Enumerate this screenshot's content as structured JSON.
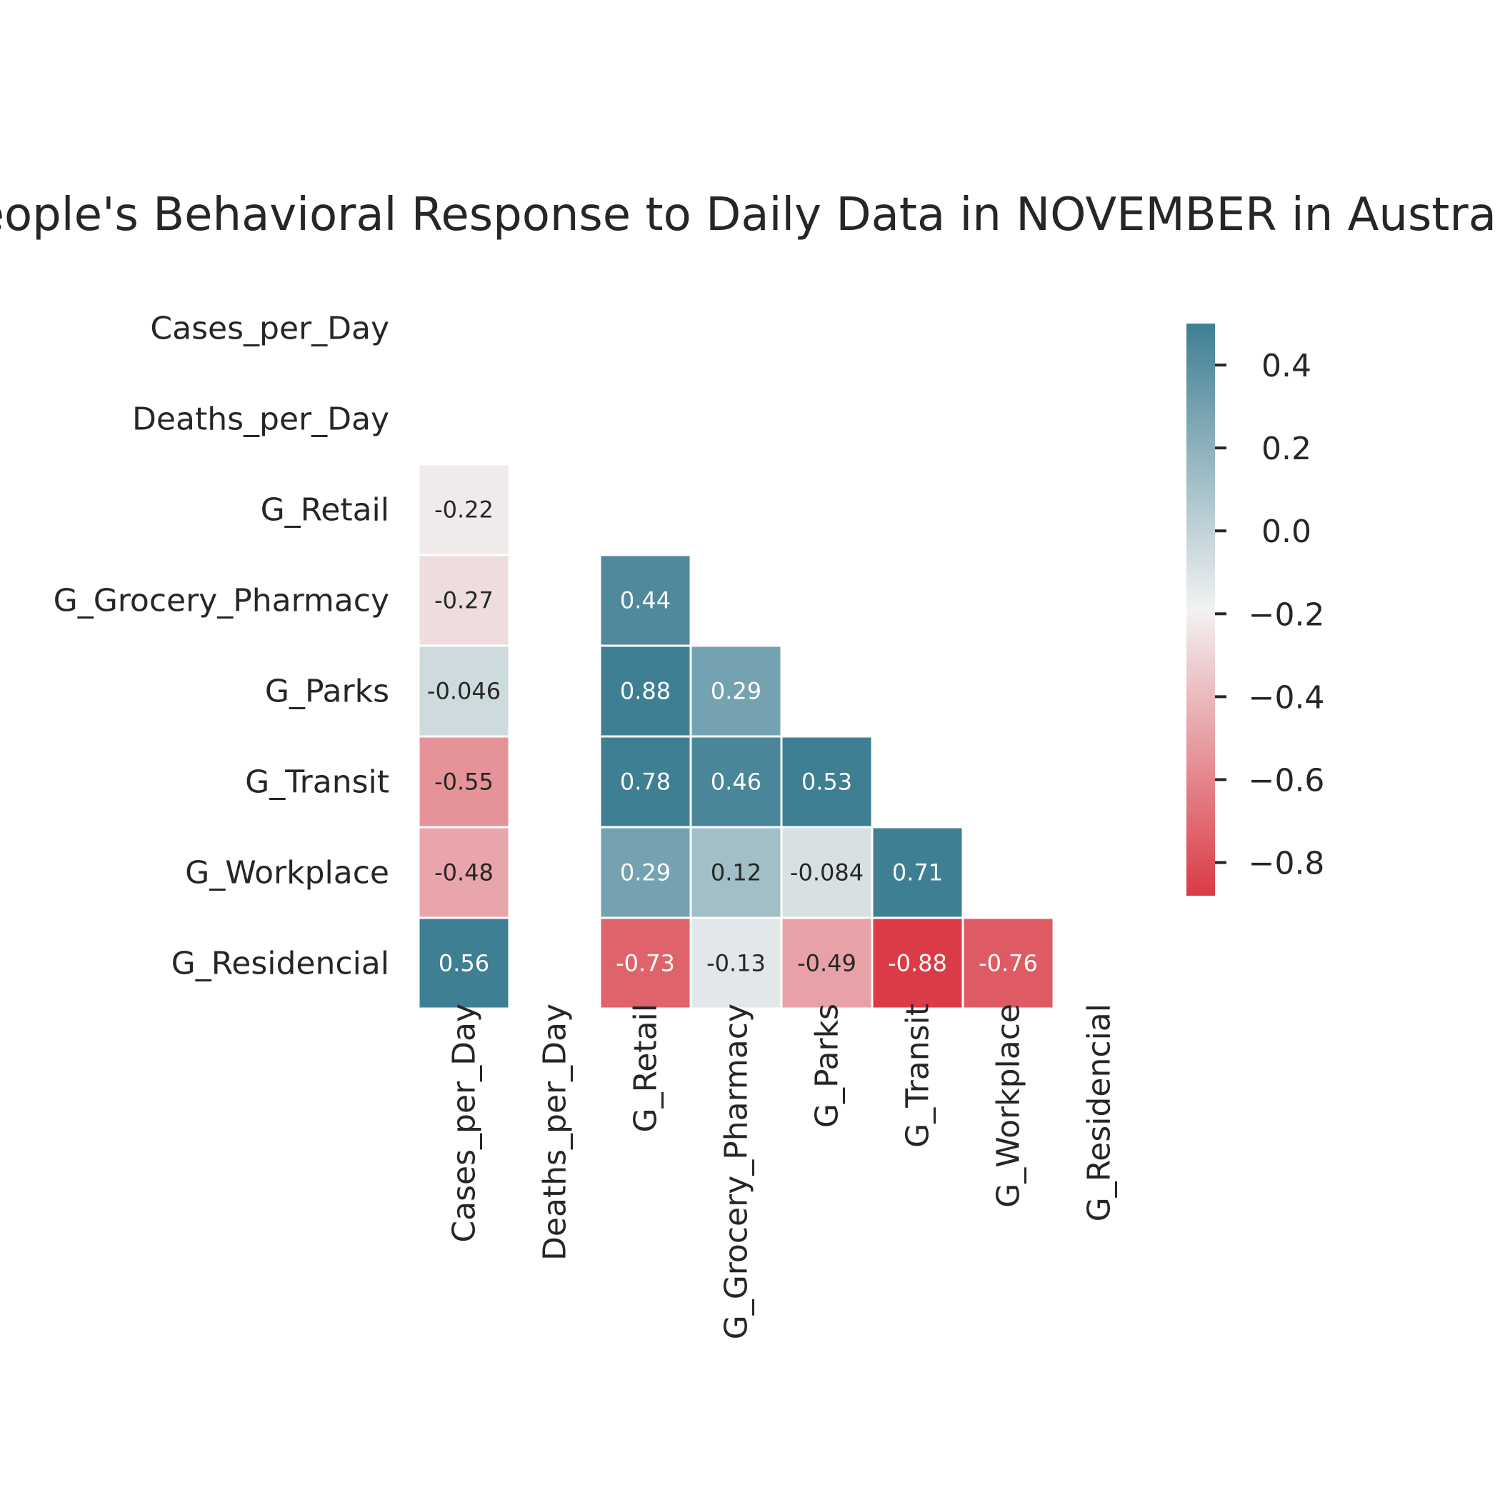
{
  "chart_data": {
    "type": "heatmap",
    "title": "People's Behavioral Response to Daily Data in NOVEMBER in Australia",
    "variables": [
      "Cases_per_Day",
      "Deaths_per_Day",
      "G_Retail",
      "G_Grocery_Pharmacy",
      "G_Parks",
      "G_Transit",
      "G_Workplace",
      "G_Residencial"
    ],
    "mask": "upper-triangle-and-diagonal",
    "cells": [
      {
        "row": "G_Retail",
        "col": "Cases_per_Day",
        "value": -0.22,
        "label": "-0.22"
      },
      {
        "row": "G_Grocery_Pharmacy",
        "col": "Cases_per_Day",
        "value": -0.27,
        "label": "-0.27"
      },
      {
        "row": "G_Grocery_Pharmacy",
        "col": "G_Retail",
        "value": 0.44,
        "label": "0.44"
      },
      {
        "row": "G_Parks",
        "col": "Cases_per_Day",
        "value": -0.046,
        "label": "-0.046"
      },
      {
        "row": "G_Parks",
        "col": "G_Retail",
        "value": 0.88,
        "label": "0.88"
      },
      {
        "row": "G_Parks",
        "col": "G_Grocery_Pharmacy",
        "value": 0.29,
        "label": "0.29"
      },
      {
        "row": "G_Transit",
        "col": "Cases_per_Day",
        "value": -0.55,
        "label": "-0.55"
      },
      {
        "row": "G_Transit",
        "col": "G_Retail",
        "value": 0.78,
        "label": "0.78"
      },
      {
        "row": "G_Transit",
        "col": "G_Grocery_Pharmacy",
        "value": 0.46,
        "label": "0.46"
      },
      {
        "row": "G_Transit",
        "col": "G_Parks",
        "value": 0.53,
        "label": "0.53"
      },
      {
        "row": "G_Workplace",
        "col": "Cases_per_Day",
        "value": -0.48,
        "label": "-0.48"
      },
      {
        "row": "G_Workplace",
        "col": "G_Retail",
        "value": 0.29,
        "label": "0.29"
      },
      {
        "row": "G_Workplace",
        "col": "G_Grocery_Pharmacy",
        "value": 0.12,
        "label": "0.12"
      },
      {
        "row": "G_Workplace",
        "col": "G_Parks",
        "value": -0.084,
        "label": "-0.084"
      },
      {
        "row": "G_Workplace",
        "col": "G_Transit",
        "value": 0.71,
        "label": "0.71"
      },
      {
        "row": "G_Residencial",
        "col": "Cases_per_Day",
        "value": 0.56,
        "label": "0.56"
      },
      {
        "row": "G_Residencial",
        "col": "G_Retail",
        "value": -0.73,
        "label": "-0.73"
      },
      {
        "row": "G_Residencial",
        "col": "G_Grocery_Pharmacy",
        "value": -0.13,
        "label": "-0.13"
      },
      {
        "row": "G_Residencial",
        "col": "G_Parks",
        "value": -0.49,
        "label": "-0.49"
      },
      {
        "row": "G_Residencial",
        "col": "G_Transit",
        "value": -0.88,
        "label": "-0.88"
      },
      {
        "row": "G_Residencial",
        "col": "G_Workplace",
        "value": -0.76,
        "label": "-0.76"
      }
    ],
    "colorbar": {
      "vmin": -0.88,
      "vmax": 0.5,
      "ticks": [
        0.4,
        0.2,
        0.0,
        -0.2,
        -0.4,
        -0.6,
        -0.8
      ],
      "tick_labels": [
        "0.4",
        "0.2",
        "0.0",
        "−0.2",
        "−0.4",
        "−0.6",
        "−0.8"
      ],
      "colors": {
        "negative": "#da3b46",
        "center": "#f2f2f2",
        "positive": "#3f7f93"
      }
    },
    "grid": false,
    "legend": "right"
  }
}
